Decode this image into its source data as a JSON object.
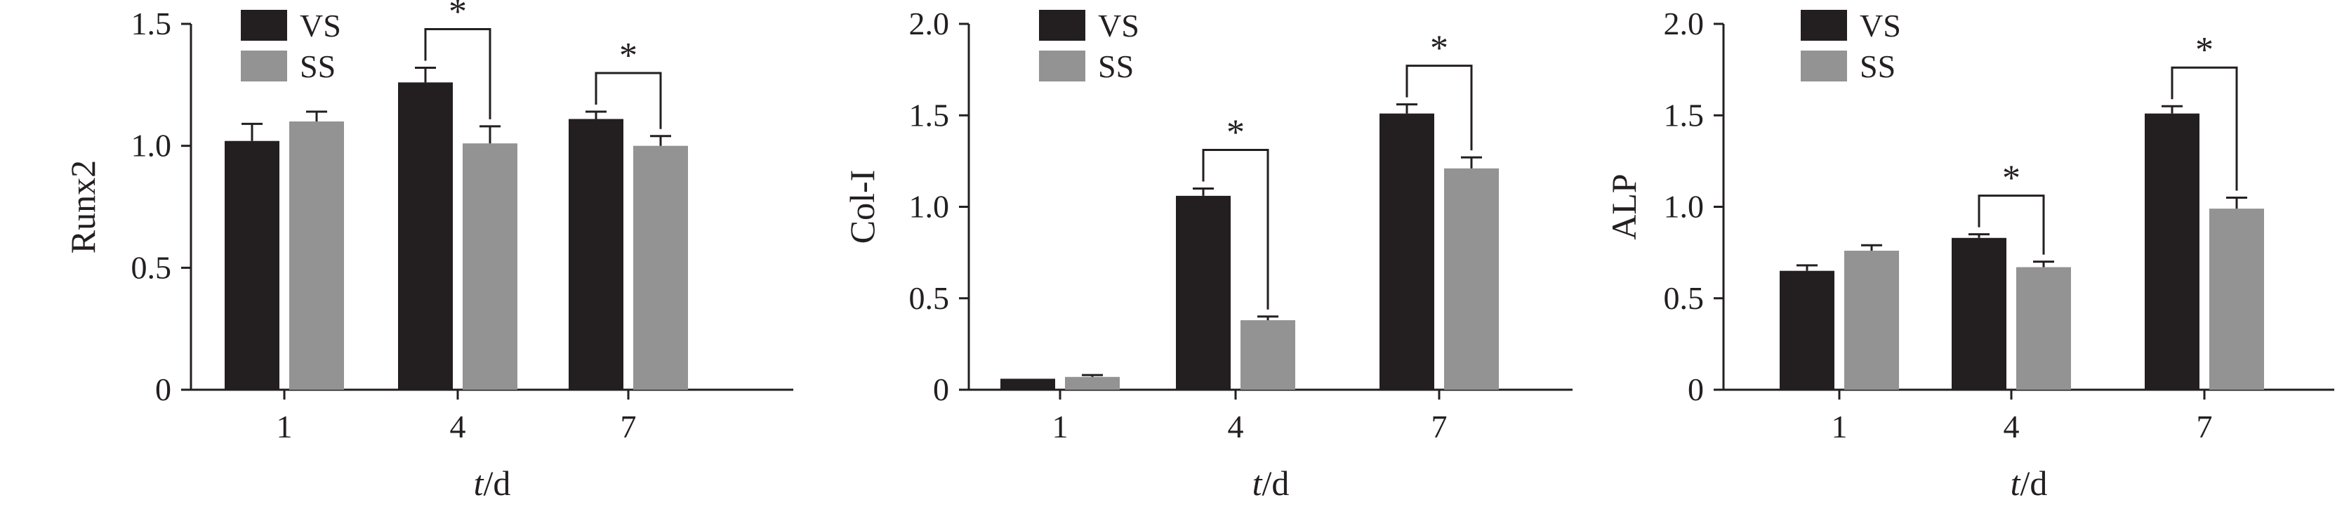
{
  "colors": {
    "VS": "#231f20",
    "SS": "#939393",
    "axis": "#231f20"
  },
  "chart_data": [
    {
      "type": "bar",
      "categories": [
        "1",
        "4",
        "7"
      ],
      "series": [
        {
          "name": "VS",
          "values": [
            1.02,
            1.26,
            1.11
          ],
          "errors": [
            0.07,
            0.06,
            0.03
          ]
        },
        {
          "name": "SS",
          "values": [
            1.1,
            1.01,
            1.0
          ],
          "errors": [
            0.04,
            0.07,
            0.04
          ]
        }
      ],
      "xlabel_italic": "t",
      "xlabel_rest": "/d",
      "ylabel": "Runx2",
      "ylim": [
        0,
        1.5
      ],
      "yticks": [
        {
          "v": 0,
          "label": "0"
        },
        {
          "v": 0.5,
          "label": "0.5"
        },
        {
          "v": 1.0,
          "label": "1.0"
        },
        {
          "v": 1.5,
          "label": "1.5"
        }
      ],
      "significance": [
        {
          "category": 1,
          "label": "*"
        },
        {
          "category": 2,
          "label": "*"
        }
      ],
      "legend_position": "top-left"
    },
    {
      "type": "bar",
      "categories": [
        "1",
        "4",
        "7"
      ],
      "series": [
        {
          "name": "VS",
          "values": [
            0.06,
            1.06,
            1.51
          ],
          "errors": [
            0.0,
            0.04,
            0.05
          ]
        },
        {
          "name": "SS",
          "values": [
            0.07,
            0.38,
            1.21
          ],
          "errors": [
            0.01,
            0.02,
            0.06
          ]
        }
      ],
      "xlabel_italic": "t",
      "xlabel_rest": "/d",
      "ylabel": "Col-I",
      "ylim": [
        0,
        2.0
      ],
      "yticks": [
        {
          "v": 0,
          "label": "0"
        },
        {
          "v": 0.5,
          "label": "0.5"
        },
        {
          "v": 1.0,
          "label": "1.0"
        },
        {
          "v": 1.5,
          "label": "1.5"
        },
        {
          "v": 2.0,
          "label": "2.0"
        }
      ],
      "significance": [
        {
          "category": 1,
          "label": "*"
        },
        {
          "category": 2,
          "label": "*"
        }
      ],
      "legend_position": "top-left"
    },
    {
      "type": "bar",
      "categories": [
        "1",
        "4",
        "7"
      ],
      "series": [
        {
          "name": "VS",
          "values": [
            0.65,
            0.83,
            1.51
          ],
          "errors": [
            0.03,
            0.02,
            0.04
          ]
        },
        {
          "name": "SS",
          "values": [
            0.76,
            0.67,
            0.99
          ],
          "errors": [
            0.03,
            0.03,
            0.06
          ]
        }
      ],
      "xlabel_italic": "t",
      "xlabel_rest": "/d",
      "ylabel": "ALP",
      "ylim": [
        0,
        2.0
      ],
      "yticks": [
        {
          "v": 0,
          "label": "0"
        },
        {
          "v": 0.5,
          "label": "0.5"
        },
        {
          "v": 1.0,
          "label": "1.0"
        },
        {
          "v": 1.5,
          "label": "1.5"
        },
        {
          "v": 2.0,
          "label": "2.0"
        }
      ],
      "significance": [
        {
          "category": 1,
          "label": "*"
        },
        {
          "category": 2,
          "label": "*"
        }
      ],
      "legend_position": "top-left"
    }
  ]
}
